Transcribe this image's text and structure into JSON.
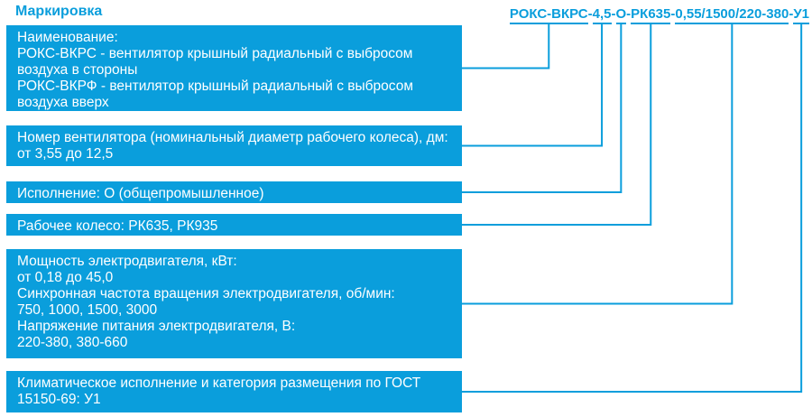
{
  "page": {
    "title": "Маркировка"
  },
  "product_code": {
    "full": "РОКС-ВКРС-4,5-О-РК635-0,55/1500/220-380-У1",
    "separator": "-",
    "segments": [
      "РОКС-ВКРС",
      "4,5",
      "О",
      "РК635",
      "0,55/1500/220-380",
      "У1"
    ]
  },
  "colors": {
    "accent": "#0A9EDC",
    "box_text": "#FFFFFF",
    "background": "#FFFFFF"
  },
  "boxes": [
    {
      "key": "name",
      "lines": [
        "Наименование:",
        "РОКС-ВКРС - вентилятор крышный радиальный с выбросом",
        "воздуха в стороны",
        "РОКС-ВКРФ - вентилятор крышный радиальный с выбросом",
        "воздуха вверх"
      ]
    },
    {
      "key": "fan-number",
      "lines": [
        "Номер вентилятора (номинальный диаметр рабочего колеса), дм:",
        "от 3,55 до 12,5"
      ]
    },
    {
      "key": "design",
      "lines": [
        "Исполнение: О (общепромышленное)"
      ]
    },
    {
      "key": "impeller",
      "lines": [
        "Рабочее колесо: РК635, РК935"
      ]
    },
    {
      "key": "motor",
      "lines": [
        "Мощность электродвигателя, кВт:",
        "от 0,18 до 45,0",
        "Синхронная частота вращения электродвигателя, об/мин:",
        "750, 1000, 1500, 3000",
        "Напряжение питания электродвигателя, В:",
        "220-380, 380-660"
      ]
    },
    {
      "key": "climatic",
      "lines": [
        "Климатическое исполнение и категория размещения по ГОСТ",
        "15150-69: У1"
      ]
    }
  ]
}
